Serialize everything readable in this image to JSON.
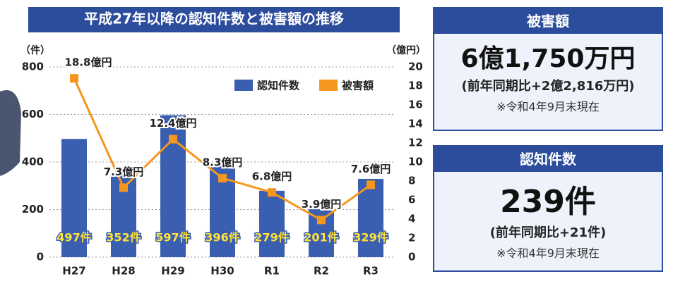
{
  "chart_data": {
    "type": "bar",
    "title": "平成27年以降の認知件数と被害額の推移",
    "y_label": "（件）",
    "y2_label": "（億円）",
    "categories": [
      "H27",
      "H28",
      "H29",
      "H30",
      "R1",
      "R2",
      "R3"
    ],
    "series": [
      {
        "name": "認知件数",
        "type": "bar",
        "color": "#3a5fb0",
        "values": [
          497,
          352,
          597,
          396,
          279,
          201,
          329
        ],
        "value_labels": [
          "497件",
          "352件",
          "597件",
          "396件",
          "279件",
          "201件",
          "329件"
        ]
      },
      {
        "name": "被害額",
        "type": "line",
        "axis": "y2",
        "color": "#f5961e",
        "values": [
          18.8,
          7.3,
          12.4,
          8.3,
          6.8,
          3.9,
          7.6
        ],
        "value_labels": [
          "18.8億円",
          "7.3億円",
          "12.4億円",
          "8.3億円",
          "6.8億円",
          "3.9億円",
          "7.6億円"
        ]
      }
    ],
    "ylim": [
      0,
      800
    ],
    "yticks": [
      0,
      200,
      400,
      600,
      800
    ],
    "y2lim": [
      0,
      20
    ],
    "y2ticks": [
      0,
      2,
      4,
      6,
      8,
      10,
      12,
      14,
      16,
      18,
      20
    ],
    "grid": true
  },
  "panels": [
    {
      "header": "被害額",
      "main": "6億1,750万円",
      "comparison": "(前年同期比+2億2,816万円)",
      "note": "※令和4年9月末現在"
    },
    {
      "header": "認知件数",
      "main": "239件",
      "comparison": "(前年同期比+21件)",
      "note": "※令和4年9月末現在"
    }
  ]
}
